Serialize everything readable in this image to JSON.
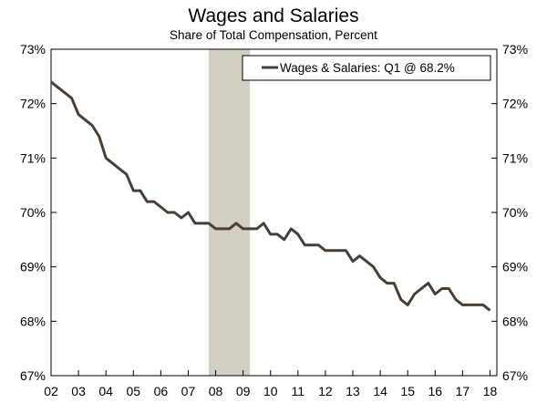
{
  "chart_data": {
    "type": "line",
    "title": "Wages and Salaries",
    "subtitle": "Share of Total Compensation, Percent",
    "xlabel": "",
    "ylabel": "",
    "x_tick_labels": [
      "02",
      "03",
      "04",
      "05",
      "06",
      "07",
      "08",
      "09",
      "10",
      "11",
      "12",
      "13",
      "14",
      "15",
      "16",
      "17",
      "18"
    ],
    "x_range": [
      2002.0,
      2018.25
    ],
    "ylim": [
      67,
      73
    ],
    "y_ticks": [
      67,
      68,
      69,
      70,
      71,
      72,
      73
    ],
    "y_tick_labels": [
      "67%",
      "68%",
      "69%",
      "70%",
      "71%",
      "72%",
      "73%"
    ],
    "recession_shading": [
      2007.75,
      2009.25
    ],
    "legend": {
      "position": "top-right",
      "label": "Wages & Salaries: Q1 @ 68.2%"
    },
    "colors": {
      "line": "#4a3f37",
      "recession": "#d3cfc2",
      "axis": "#000000"
    },
    "series": [
      {
        "name": "Wages & Salaries",
        "x": [
          2002.0,
          2002.25,
          2002.5,
          2002.75,
          2003.0,
          2003.25,
          2003.5,
          2003.75,
          2004.0,
          2004.25,
          2004.5,
          2004.75,
          2005.0,
          2005.25,
          2005.5,
          2005.75,
          2006.0,
          2006.25,
          2006.5,
          2006.75,
          2007.0,
          2007.25,
          2007.5,
          2007.75,
          2008.0,
          2008.25,
          2008.5,
          2008.75,
          2009.0,
          2009.25,
          2009.5,
          2009.75,
          2010.0,
          2010.25,
          2010.5,
          2010.75,
          2011.0,
          2011.25,
          2011.5,
          2011.75,
          2012.0,
          2012.25,
          2012.5,
          2012.75,
          2013.0,
          2013.25,
          2013.5,
          2013.75,
          2014.0,
          2014.25,
          2014.5,
          2014.75,
          2015.0,
          2015.25,
          2015.5,
          2015.75,
          2016.0,
          2016.25,
          2016.5,
          2016.75,
          2017.0,
          2017.25,
          2017.5,
          2017.75,
          2018.0
        ],
        "values": [
          72.4,
          72.3,
          72.2,
          72.1,
          71.8,
          71.7,
          71.6,
          71.4,
          71.0,
          70.9,
          70.8,
          70.7,
          70.4,
          70.4,
          70.2,
          70.2,
          70.1,
          70.0,
          70.0,
          69.9,
          70.0,
          69.8,
          69.8,
          69.8,
          69.7,
          69.7,
          69.7,
          69.8,
          69.7,
          69.7,
          69.7,
          69.8,
          69.6,
          69.6,
          69.5,
          69.7,
          69.6,
          69.4,
          69.4,
          69.4,
          69.3,
          69.3,
          69.3,
          69.3,
          69.1,
          69.2,
          69.1,
          69.0,
          68.8,
          68.7,
          68.7,
          68.4,
          68.3,
          68.5,
          68.6,
          68.7,
          68.5,
          68.6,
          68.6,
          68.4,
          68.3,
          68.3,
          68.3,
          68.3,
          68.2
        ]
      }
    ]
  }
}
